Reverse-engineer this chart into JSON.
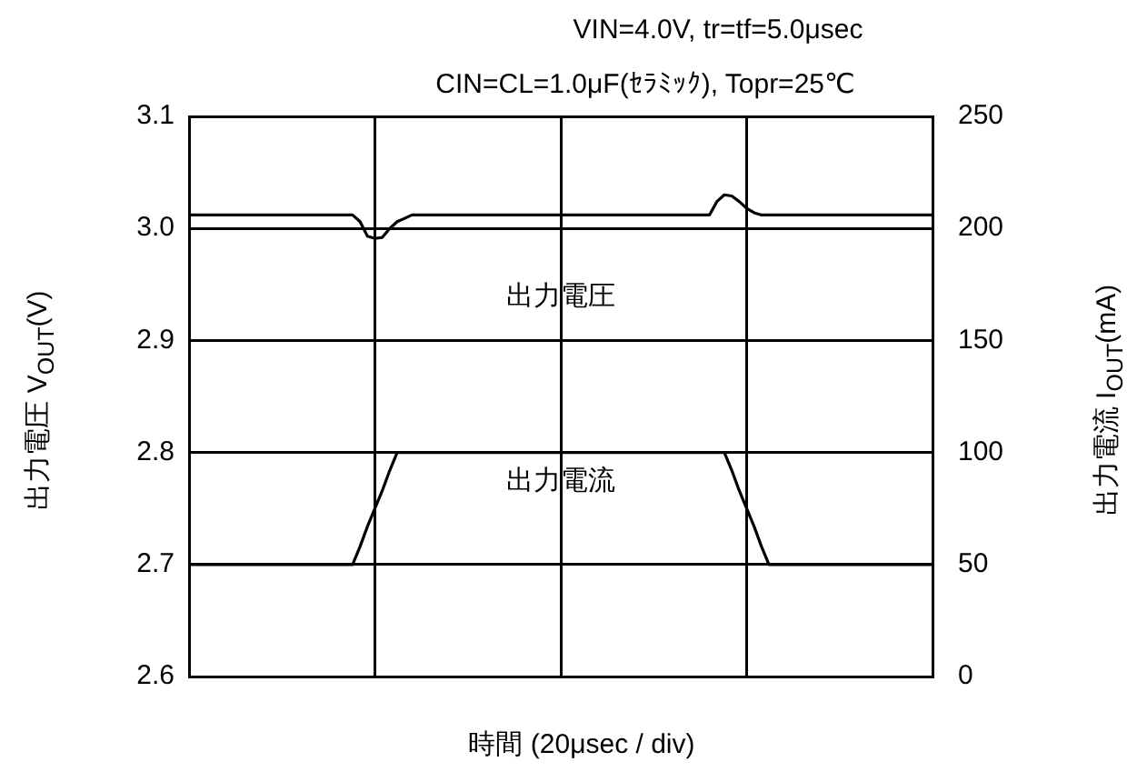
{
  "chart_data": {
    "type": "line",
    "title": "VIN=4.0V, tr=tf=5.0μsec",
    "subtitle": "CIN=CL=1.0μF(ｾﾗﾐｯｸ), Topr=25℃",
    "xlabel": "時間 (20μsec / div)",
    "ylabel": "出力電圧 V$_{OUT}$(V)",
    "y2label": "出力電流 I$_{OUT}$(mA)",
    "categories": [
      null,
      null,
      null,
      null,
      null,
      null,
      null,
      null,
      null,
      null,
      null,
      null,
      null,
      null,
      null,
      null,
      null,
      null,
      null,
      null,
      null,
      null,
      null,
      null,
      null,
      null,
      null,
      null,
      null,
      null,
      null,
      null,
      null,
      null,
      null,
      null,
      null,
      null,
      null,
      null,
      null,
      null,
      null,
      null,
      null,
      null,
      null,
      null,
      null,
      null,
      null,
      null,
      null,
      null,
      null,
      null,
      null,
      null,
      null,
      null,
      null,
      null,
      null,
      null,
      null,
      null,
      null,
      null,
      null,
      null,
      null,
      null,
      null,
      null,
      null,
      null,
      null,
      null,
      null,
      null,
      null,
      null,
      null,
      null,
      null,
      null,
      null,
      null,
      null,
      null,
      null,
      null,
      null,
      null,
      null,
      null,
      null,
      null,
      null,
      null,
      null
    ],
    "series": [
      {
        "name": "出力電圧",
        "color": "#000000",
        "values": [
          3.012,
          3.012,
          3.012,
          3.012,
          3.012,
          3.012,
          3.012,
          3.012,
          3.012,
          3.012,
          3.012,
          3.012,
          3.012,
          3.012,
          3.012,
          3.012,
          3.012,
          3.012,
          3.012,
          3.012,
          3.012,
          3.012,
          3.012,
          3.006,
          2.993,
          2.991,
          2.992,
          3.0,
          3.006,
          3.009,
          3.012,
          3.012,
          3.012,
          3.012,
          3.012,
          3.012,
          3.012,
          3.012,
          3.012,
          3.012,
          3.012,
          3.012,
          3.012,
          3.012,
          3.012,
          3.012,
          3.012,
          3.012,
          3.012,
          3.012,
          3.012,
          3.012,
          3.012,
          3.012,
          3.012,
          3.012,
          3.012,
          3.012,
          3.012,
          3.012,
          3.012,
          3.012,
          3.012,
          3.012,
          3.012,
          3.012,
          3.012,
          3.012,
          3.012,
          3.012,
          3.012,
          3.024,
          3.03,
          3.029,
          3.024,
          3.018,
          3.014,
          3.012,
          3.012,
          3.012,
          3.012,
          3.012,
          3.012,
          3.012,
          3.012,
          3.012,
          3.012,
          3.012,
          3.012,
          3.012,
          3.012,
          3.012,
          3.012,
          3.012,
          3.012,
          3.012,
          3.012,
          3.012,
          3.012,
          3.012,
          3.012
        ]
      },
      {
        "name": "出力電流",
        "color": "#000000",
        "axis": "y2",
        "values": [
          50,
          50,
          50,
          50,
          50,
          50,
          50,
          50,
          50,
          50,
          50,
          50,
          50,
          50,
          50,
          50,
          50,
          50,
          50,
          50,
          50,
          50,
          50,
          58,
          67,
          75,
          83,
          92,
          100,
          100,
          100,
          100,
          100,
          100,
          100,
          100,
          100,
          100,
          100,
          100,
          100,
          100,
          100,
          100,
          100,
          100,
          100,
          100,
          100,
          100,
          100,
          100,
          100,
          100,
          100,
          100,
          100,
          100,
          100,
          100,
          100,
          100,
          100,
          100,
          100,
          100,
          100,
          100,
          100,
          100,
          100,
          100,
          100,
          92,
          83,
          75,
          67,
          58,
          50,
          50,
          50,
          50,
          50,
          50,
          50,
          50,
          50,
          50,
          50,
          50,
          50,
          50,
          50,
          50,
          50,
          50,
          50,
          50,
          50,
          50,
          50
        ]
      }
    ],
    "ylim": [
      2.6,
      3.1
    ],
    "yticks": [
      {
        "value": 2.6,
        "label": "2.6"
      },
      {
        "value": 2.7,
        "label": "2.7"
      },
      {
        "value": 2.8,
        "label": "2.8"
      },
      {
        "value": 2.9,
        "label": "2.9"
      },
      {
        "value": 3,
        "label": "3.0"
      },
      {
        "value": 3.1,
        "label": "3.1"
      }
    ],
    "y2lim": [
      0,
      250
    ],
    "y2ticks": [
      0,
      50,
      100,
      150,
      200,
      250
    ],
    "grid": true,
    "marker": "none",
    "line_style": "solid"
  }
}
